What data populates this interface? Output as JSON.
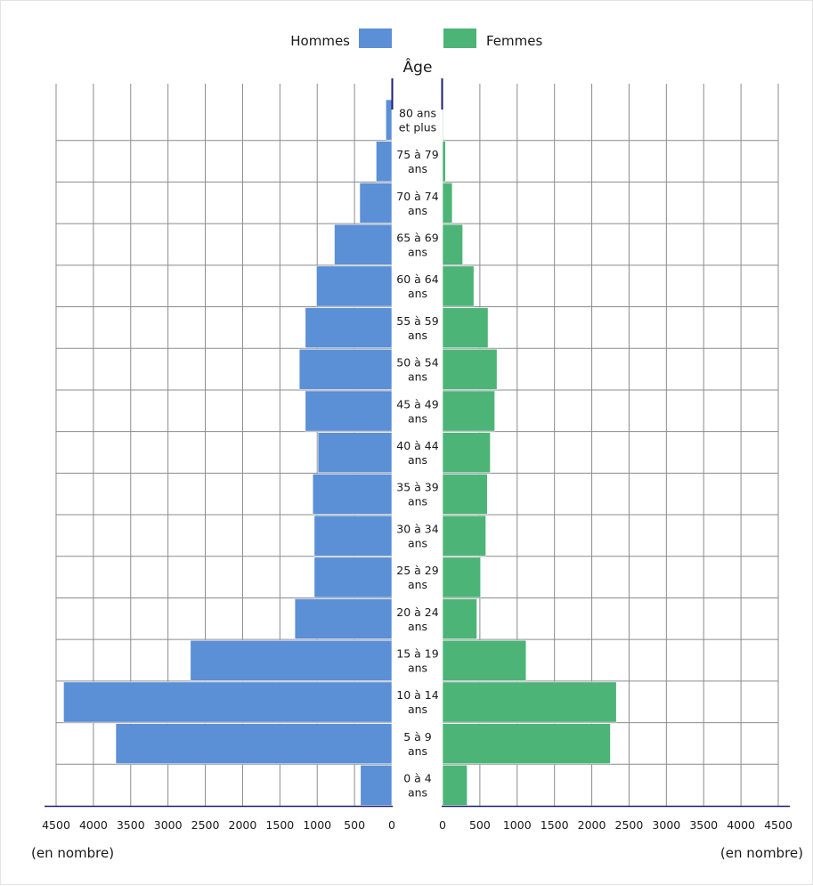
{
  "chart_data": {
    "type": "bar",
    "orientation": "horizontal",
    "subtype": "population-pyramid",
    "legend": {
      "position": "top-center",
      "entries": [
        {
          "name": "Hommes",
          "color": "#5b8fd6"
        },
        {
          "name": "Femmes",
          "color": "#4cb477"
        }
      ]
    },
    "age_axis_title": "Âge",
    "categories": [
      [
        "80 ans",
        "et plus"
      ],
      [
        "75 à 79",
        "ans"
      ],
      [
        "70 à 74",
        "ans"
      ],
      [
        "65 à 69",
        "ans"
      ],
      [
        "60 à 64",
        "ans"
      ],
      [
        "55 à 59",
        "ans"
      ],
      [
        "50 à 54",
        "ans"
      ],
      [
        "45 à 49",
        "ans"
      ],
      [
        "40 à 44",
        "ans"
      ],
      [
        "35 à 39",
        "ans"
      ],
      [
        "30 à 34",
        "ans"
      ],
      [
        "25 à 29",
        "ans"
      ],
      [
        "20 à 24",
        "ans"
      ],
      [
        "15 à 19",
        "ans"
      ],
      [
        "10 à 14",
        "ans"
      ],
      [
        "5 à 9",
        "ans"
      ],
      [
        "0 à 4",
        "ans"
      ]
    ],
    "series": [
      {
        "name": "Hommes",
        "color": "#5b8fd6",
        "values": [
          80,
          210,
          430,
          770,
          1010,
          1160,
          1240,
          1160,
          990,
          1060,
          1040,
          1040,
          1300,
          2700,
          4400,
          3700,
          420
        ]
      },
      {
        "name": "Femmes",
        "color": "#4cb477",
        "values": [
          10,
          40,
          130,
          270,
          420,
          610,
          730,
          700,
          640,
          600,
          580,
          510,
          460,
          1120,
          2330,
          2250,
          330
        ]
      }
    ],
    "x_ticks": [
      "4500",
      "4000",
      "3500",
      "3000",
      "2500",
      "2000",
      "1500",
      "1000",
      "500",
      "0"
    ],
    "x_ticks_right": [
      "0",
      "500",
      "1000",
      "1500",
      "2000",
      "2500",
      "3000",
      "3500",
      "4000",
      "4500"
    ],
    "xlim": [
      0,
      4500
    ],
    "x_unit_left": "(en nombre)",
    "x_unit_right": "(en nombre)",
    "grid": true
  }
}
